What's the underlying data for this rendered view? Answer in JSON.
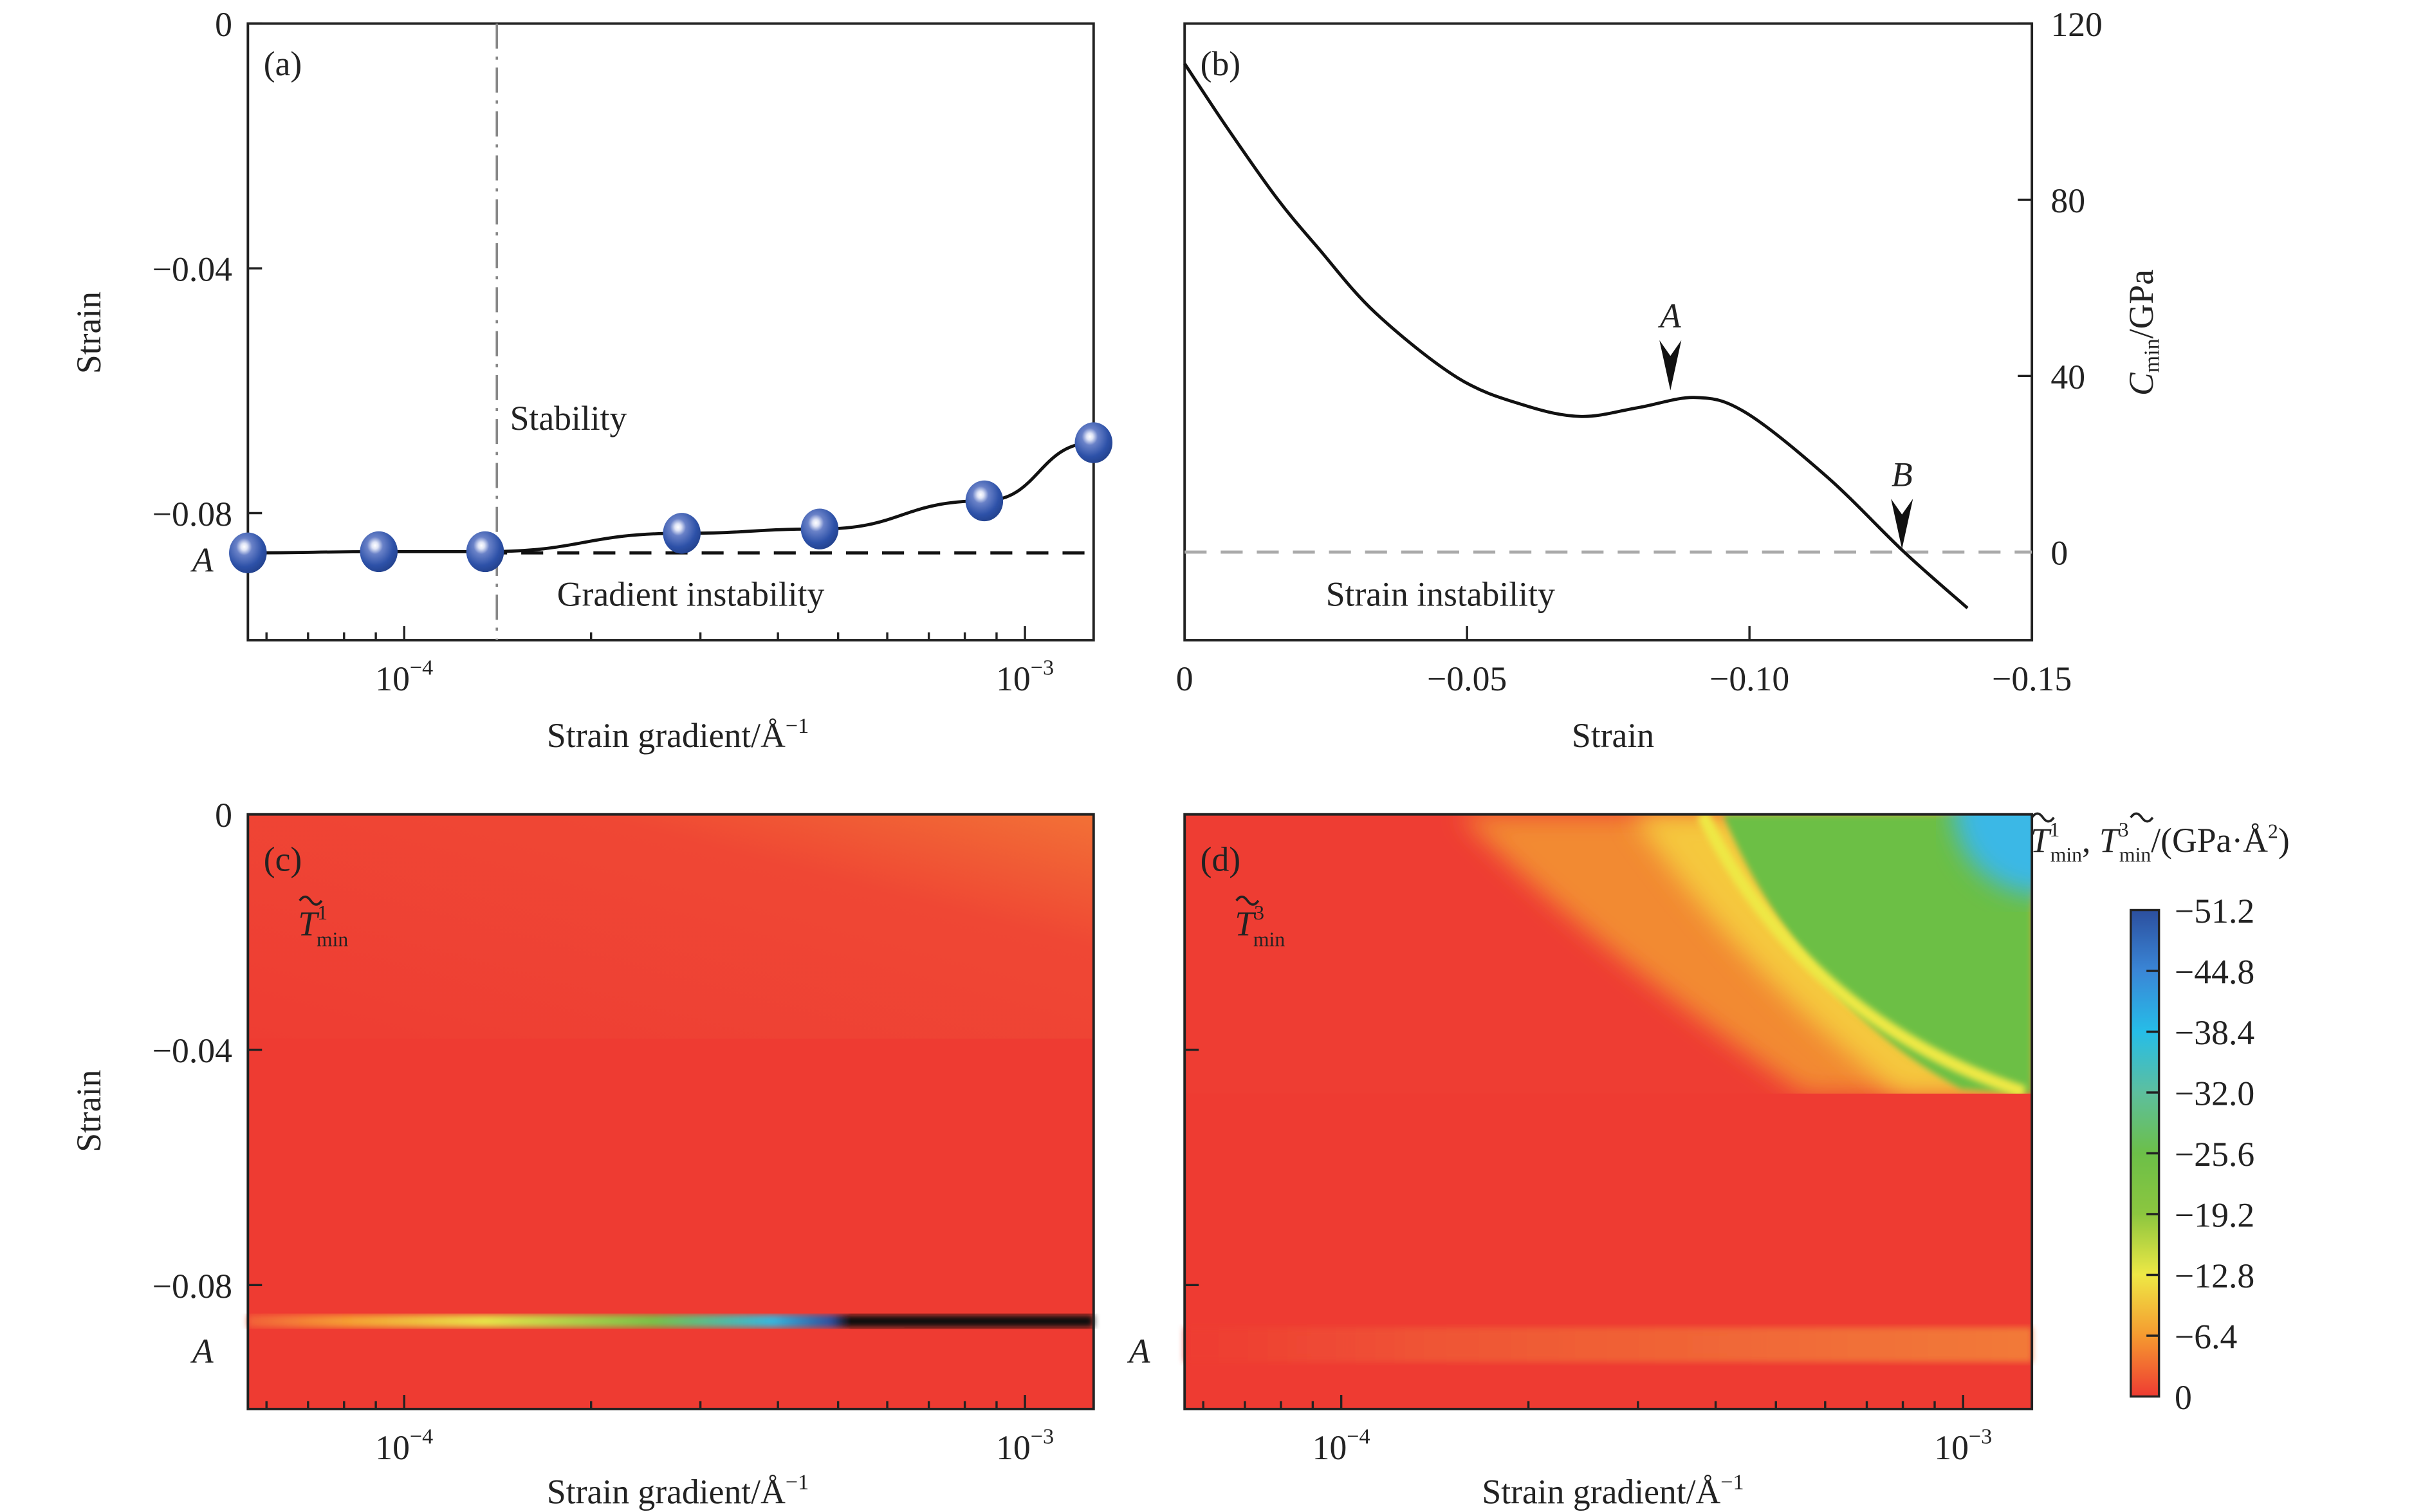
{
  "colors": {
    "sphere": "#2d51a8",
    "grey_line": "#888888",
    "heat_red": "#ee3b32"
  },
  "chart_data": [
    {
      "panel": "(a)",
      "type": "scatter",
      "xlabel": "Strain gradient/Å",
      "xlabel_sup": "−1",
      "ylabel": "Strain",
      "xscale": "log",
      "xlim": [
        5.6e-05,
        0.00129
      ],
      "ylim": [
        -0.1,
        0
      ],
      "xticks": [
        {
          "base": "10",
          "exp": "−4",
          "value": 0.0001
        },
        {
          "base": "10",
          "exp": "−3",
          "value": 0.001
        }
      ],
      "yticks": [
        {
          "label": "0",
          "value": 0
        },
        {
          "label": "−0.04",
          "value": -0.04
        },
        {
          "label": "−0.08",
          "value": -0.08
        }
      ],
      "ymarker": {
        "label": "A",
        "value": -0.0865
      },
      "x": [
        5.6e-05,
        9.1e-05,
        0.000135,
        0.00028,
        0.000467,
        0.00086,
        0.00129
      ],
      "y": [
        -0.0865,
        -0.0863,
        -0.0863,
        -0.0833,
        -0.0826,
        -0.078,
        -0.0685
      ],
      "threshold_strain": -0.0865,
      "divider_x": 0.000141,
      "annotations": [
        "Stability",
        "Gradient instability"
      ]
    },
    {
      "panel": "(b)",
      "type": "line",
      "xlabel": "Strain",
      "ylabel": "C",
      "ylabel_sub": "min",
      "ylabel_unit": "/GPa",
      "xlim": [
        0,
        -0.15
      ],
      "ylim": [
        -20,
        120
      ],
      "yaxis_side": "right",
      "xticks": [
        {
          "label": "0",
          "value": 0
        },
        {
          "label": "−0.05",
          "value": -0.05
        },
        {
          "label": "−0.10",
          "value": -0.1
        },
        {
          "label": "−0.15",
          "value": -0.15
        }
      ],
      "yticks": [
        {
          "label": "0",
          "value": 0
        },
        {
          "label": "40",
          "value": 40
        },
        {
          "label": "80",
          "value": 80
        },
        {
          "label": "120",
          "value": 120
        }
      ],
      "x": [
        0,
        -0.0076,
        -0.0163,
        -0.0236,
        -0.0338,
        -0.0483,
        -0.06,
        -0.0702,
        -0.0803,
        -0.0905,
        -0.0993,
        -0.1138,
        -0.1274,
        -0.1386
      ],
      "y": [
        110.9,
        96.2,
        80.4,
        69.1,
        54.3,
        39.6,
        33.4,
        30.8,
        32.8,
        35.1,
        31.7,
        17,
        0,
        -12.7
      ],
      "zero_line": 0,
      "markers": [
        {
          "label": "A",
          "x": -0.086,
          "y": 36
        },
        {
          "label": "B",
          "x": -0.127,
          "y": 0
        }
      ],
      "annotations": [
        "Strain instability"
      ]
    },
    {
      "panel": "(c)",
      "type": "heatmap",
      "quantity": {
        "symbol": "T",
        "sub": "min",
        "sup": "1"
      },
      "xlabel": "Strain gradient/Å",
      "xlabel_sup": "−1",
      "ylabel": "Strain",
      "xscale": "log",
      "xlim": [
        5.6e-05,
        0.00129
      ],
      "ylim": [
        -0.1,
        0
      ],
      "xticks": [
        {
          "base": "10",
          "exp": "−4",
          "value": 0.0001
        },
        {
          "base": "10",
          "exp": "−3",
          "value": 0.001
        }
      ],
      "yticks": [
        {
          "label": "0",
          "value": 0
        },
        {
          "label": "−0.04",
          "value": -0.04
        },
        {
          "label": "−0.08",
          "value": -0.08
        }
      ],
      "ymarker": {
        "label": "A",
        "value": -0.09
      },
      "features": {
        "background_value": 0,
        "band_strain": -0.086,
        "band_min_value": -51.2,
        "upper_region_boundary": -0.038
      }
    },
    {
      "panel": "(d)",
      "type": "heatmap",
      "quantity": {
        "symbol": "T",
        "sub": "min",
        "sup": "3"
      },
      "xlabel": "Strain gradient/Å",
      "xlabel_sup": "−1",
      "xscale": "log",
      "xlim": [
        5.6e-05,
        0.00129
      ],
      "ylim": [
        -0.1,
        0
      ],
      "xticks": [
        {
          "base": "10",
          "exp": "−4",
          "value": 0.0001
        },
        {
          "base": "10",
          "exp": "−3",
          "value": 0.001
        }
      ],
      "ymarker": {
        "label": "A",
        "value": -0.09
      },
      "features": {
        "background_value": 0,
        "upper_region_boundary": -0.047,
        "upper_region_max_value": -40
      }
    }
  ],
  "colorbar": {
    "title_parts": {
      "sym": "T",
      "sub": "min",
      "sup1": "1",
      "sup3": "3",
      "sep": ", ",
      "unit": "/(GPa·Å",
      "unit_sup": "2",
      "close": ")"
    },
    "range": [
      -51.2,
      0
    ],
    "ticks": [
      "−51.2",
      "−44.8",
      "−38.4",
      "−32.0",
      "−25.6",
      "−19.2",
      "−12.8",
      "−6.4",
      "0"
    ],
    "stops": [
      "#2c4f9e",
      "#3a86d6",
      "#26bde8",
      "#5dbf9e",
      "#6cbf48",
      "#8cc63f",
      "#eee845",
      "#f59a30",
      "#ee3b32"
    ]
  }
}
